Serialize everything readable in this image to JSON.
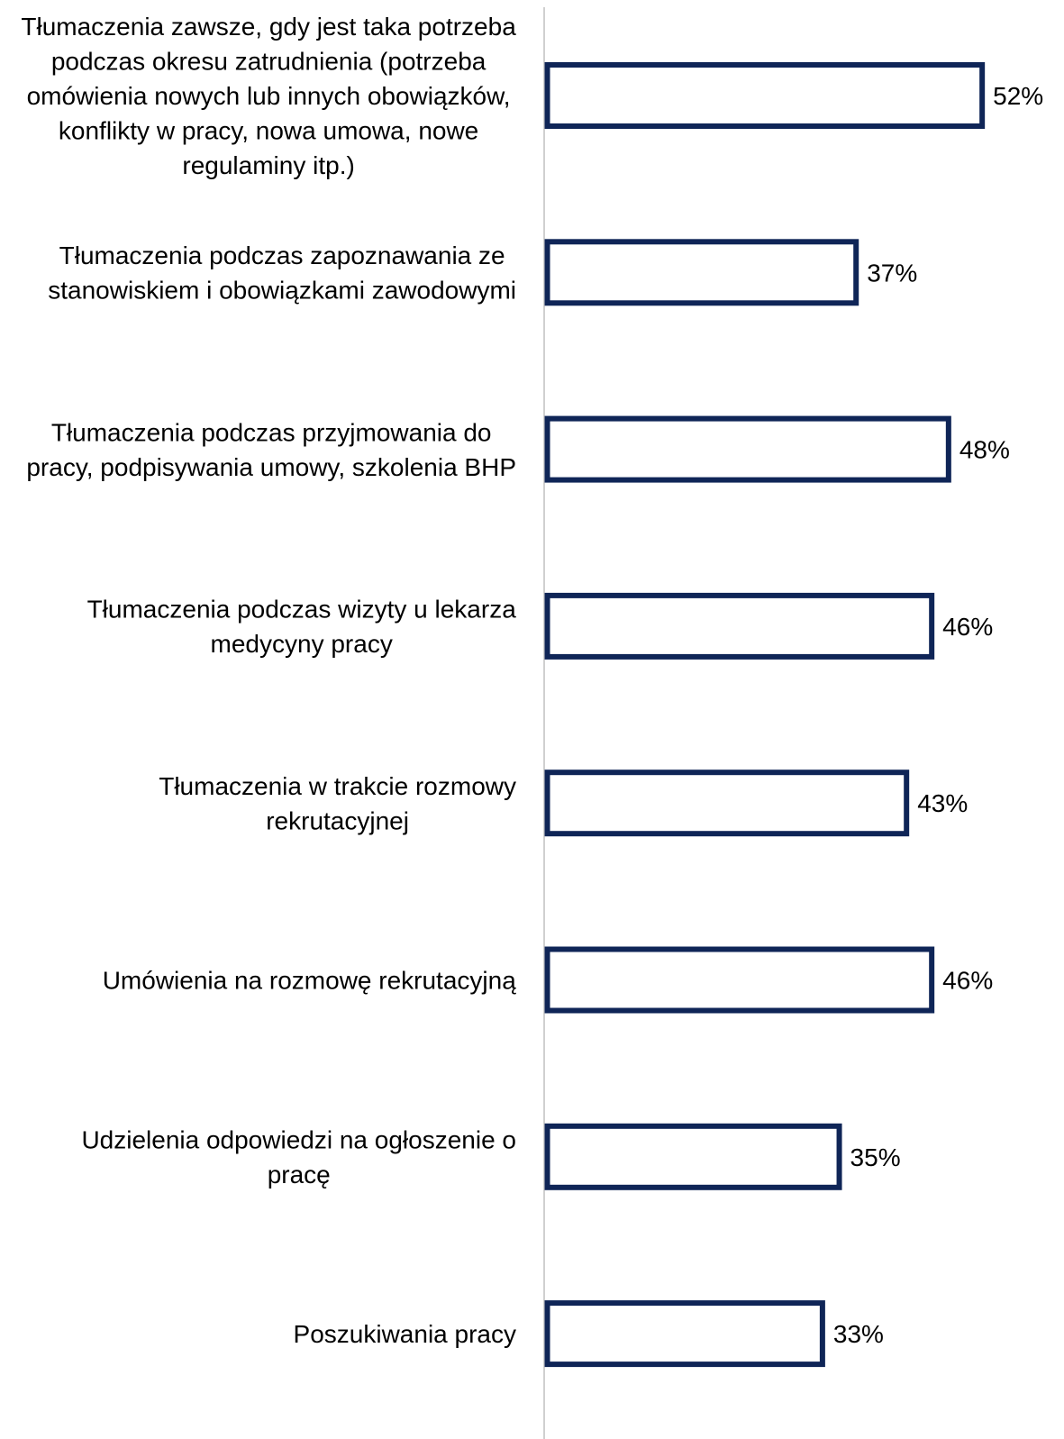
{
  "chart_data": {
    "type": "bar",
    "orientation": "horizontal",
    "categories": [
      "Tłumaczenia zawsze, gdy jest taka potrzeba podczas okresu zatrudnienia (potrzeba omówienia nowych lub innych obowiązków, konflikty w pracy, nowa umowa, nowe regulaminy itp.)",
      "Tłumaczenia podczas zapoznawania ze stanowiskiem i obowiązkami zawodowymi",
      "Tłumaczenia podczas przyjmowania do pracy, podpisywania umowy, szkolenia BHP",
      "Tłumaczenia podczas wizyty u lekarza medycyny pracy",
      "Tłumaczenia w trakcie rozmowy rekrutacyjnej",
      "Umówienia na rozmowę rekrutacyjną",
      "Udzielenia odpowiedzi na ogłoszenie o pracę",
      "Poszukiwania pracy"
    ],
    "category_lines": [
      [
        "Tłumaczenia zawsze, gdy jest taka potrzeba",
        "podczas okresu zatrudnienia (potrzeba",
        "omówienia nowych lub innych obowiązków,",
        "konflikty w pracy, nowa umowa, nowe",
        "regulaminy itp.)"
      ],
      [
        "Tłumaczenia podczas zapoznawania ze",
        "stanowiskiem i obowiązkami zawodowymi"
      ],
      [
        "Tłumaczenia podczas przyjmowania do",
        "pracy, podpisywania umowy, szkolenia BHP"
      ],
      [
        "Tłumaczenia podczas wizyty u lekarza",
        "medycyny pracy"
      ],
      [
        "Tłumaczenia w trakcie rozmowy",
        "rekrutacyjnej"
      ],
      [
        "Umówienia na rozmowę rekrutacyjną"
      ],
      [
        "Udzielenia odpowiedzi na ogłoszenie o",
        "pracę"
      ],
      [
        "Poszukiwania pracy"
      ]
    ],
    "values": [
      52,
      37,
      48,
      46,
      43,
      46,
      35,
      33
    ],
    "value_labels": [
      "52%",
      "37%",
      "48%",
      "46%",
      "43%",
      "46%",
      "35%",
      "33%"
    ],
    "unit": "%",
    "xlim": [
      0,
      60
    ],
    "title": "",
    "xlabel": "",
    "ylabel": "",
    "grid": false,
    "legend": "none",
    "colors": {
      "bar_stroke": "#0f2557",
      "bar_fill": "#ffffff",
      "axis_line": "#d0d0d0"
    }
  }
}
